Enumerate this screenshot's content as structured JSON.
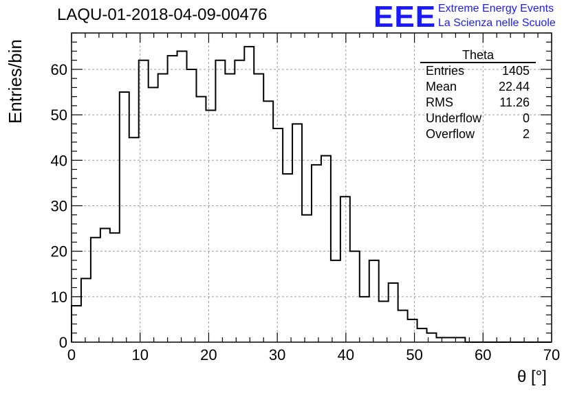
{
  "header": {
    "title": "LAQU-01-2018-04-09-00476",
    "logo_text": "EEE",
    "logo_line1": "Extreme Energy Events",
    "logo_line2": "La Scienza nelle Scuole",
    "logo_color": "#1a1aff"
  },
  "stats": {
    "title": "Theta",
    "rows": [
      {
        "label": "Entries",
        "value": "1405"
      },
      {
        "label": "Mean",
        "value": "22.44"
      },
      {
        "label": "RMS",
        "value": "11.26"
      },
      {
        "label": "Underflow",
        "value": "0"
      },
      {
        "label": "Overflow",
        "value": "2"
      }
    ]
  },
  "chart_data": {
    "type": "histogram",
    "xlabel": "θ [°]",
    "ylabel": "Entries/bin",
    "xlim": [
      0,
      70
    ],
    "ylim": [
      0,
      68
    ],
    "grid": true,
    "x_ticks": [
      0,
      10,
      20,
      30,
      40,
      50,
      60,
      70
    ],
    "y_ticks": [
      0,
      10,
      20,
      30,
      40,
      50,
      60
    ],
    "bin_width": 1.4,
    "bin_edges_start": 0,
    "values": [
      8,
      14,
      23,
      25,
      24,
      55,
      45,
      62,
      56,
      59,
      63,
      64,
      60,
      54,
      51,
      62,
      59,
      62,
      65,
      59,
      53,
      47,
      37,
      48,
      28,
      39,
      41,
      18,
      32,
      20,
      10,
      18,
      9,
      13,
      7,
      5,
      3,
      2,
      1,
      1,
      1,
      0,
      0,
      0,
      0,
      0,
      0,
      0,
      0,
      0
    ]
  }
}
